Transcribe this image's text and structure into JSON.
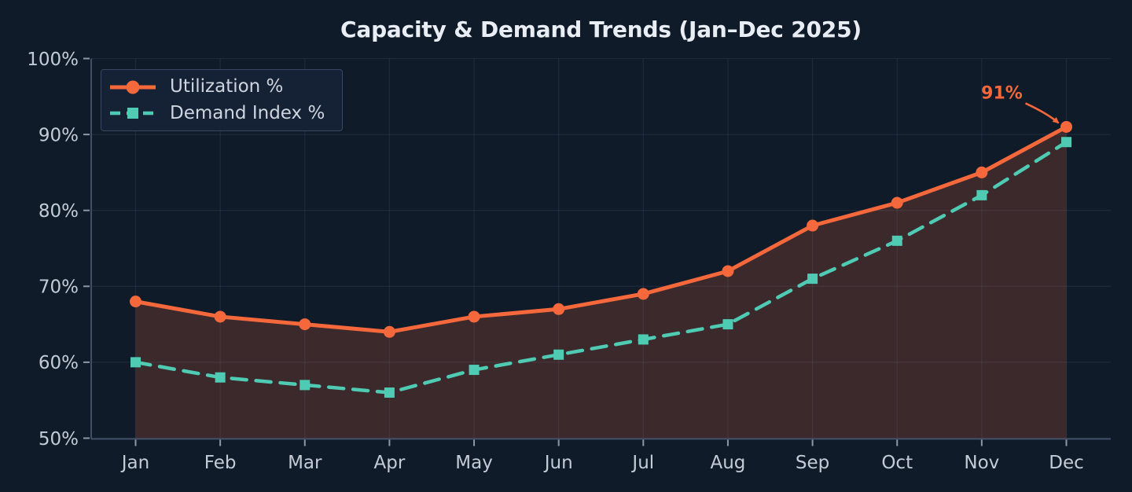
{
  "title": "Capacity & Demand Trends (Jan–Dec 2025)",
  "colors": {
    "background": "#101b29",
    "utilization": "#f4683c",
    "demand": "#4fcbb4",
    "area_fill": "rgba(244,104,60,0.19)",
    "grid": "rgba(170,190,220,0.09)",
    "spine": "#46546e",
    "tick": "#8d99a8",
    "tick_label": "#c3ccd6",
    "title_text": "#e9eef4",
    "legend_border": "#3a4763",
    "legend_text": "#ced5de",
    "annotation": "#f4683c"
  },
  "chart_data": {
    "type": "line",
    "title": "Capacity & Demand Trends (Jan–Dec 2025)",
    "categories": [
      "Jan",
      "Feb",
      "Mar",
      "Apr",
      "May",
      "Jun",
      "Jul",
      "Aug",
      "Sep",
      "Oct",
      "Nov",
      "Dec"
    ],
    "series": [
      {
        "name": "Utilization %",
        "values": [
          68,
          66,
          65,
          64,
          66,
          67,
          69,
          72,
          78,
          81,
          85,
          91
        ],
        "color": "#f4683c",
        "line_style": "solid",
        "marker": "circle",
        "area_fill": true
      },
      {
        "name": "Demand Index %",
        "values": [
          60,
          58,
          57,
          56,
          59,
          61,
          63,
          65,
          71,
          76,
          82,
          89
        ],
        "color": "#4fcbb4",
        "line_style": "dashed",
        "marker": "square",
        "area_fill": false
      }
    ],
    "xlabel": "",
    "ylabel": "",
    "ylim": [
      50,
      100
    ],
    "y_ticks": [
      {
        "value": 50,
        "label": "50%"
      },
      {
        "value": 60,
        "label": "60%"
      },
      {
        "value": 70,
        "label": "70%"
      },
      {
        "value": 80,
        "label": "80%"
      },
      {
        "value": 90,
        "label": "90%"
      },
      {
        "value": 100,
        "label": "100%"
      }
    ],
    "grid": true,
    "legend_position": "upper left",
    "annotation": {
      "text": "91%",
      "series": "Utilization %",
      "category": "Dec",
      "value": 91
    }
  }
}
